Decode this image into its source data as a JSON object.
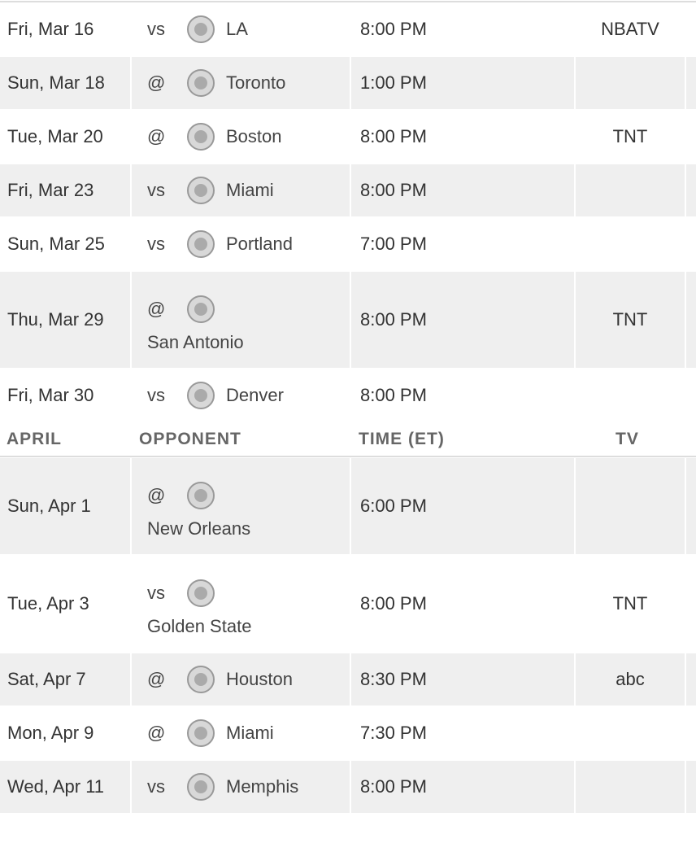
{
  "sections": [
    {
      "games": [
        {
          "date": "Fri, Mar 16",
          "site": "vs",
          "opponent": "LA",
          "time": "8:00 PM",
          "tv": "NBATV"
        },
        {
          "date": "Sun, Mar 18",
          "site": "@",
          "opponent": "Toronto",
          "time": "1:00 PM"
        },
        {
          "date": "Tue, Mar 20",
          "site": "@",
          "opponent": "Boston",
          "time": "8:00 PM",
          "tv": "TNT"
        },
        {
          "date": "Fri, Mar 23",
          "site": "vs",
          "opponent": "Miami",
          "time": "8:00 PM"
        },
        {
          "date": "Sun, Mar 25",
          "site": "vs",
          "opponent": "Portland",
          "time": "7:00 PM"
        },
        {
          "date": "Thu, Mar 29",
          "site": "@",
          "opponent": "San Antonio",
          "time": "8:00 PM",
          "tv": "TNT"
        },
        {
          "date": "Fri, Mar 30",
          "site": "vs",
          "opponent": "Denver",
          "time": "8:00 PM"
        }
      ]
    },
    {
      "header": {
        "month": "APRIL",
        "opponent": "OPPONENT",
        "time": "TIME (ET)",
        "tv": "TV"
      },
      "games": [
        {
          "date": "Sun, Apr 1",
          "site": "@",
          "opponent": "New Orleans",
          "time": "6:00 PM"
        },
        {
          "date": "Tue, Apr 3",
          "site": "vs",
          "opponent": "Golden State",
          "time": "8:00 PM",
          "tv": "TNT"
        },
        {
          "date": "Sat, Apr 7",
          "site": "@",
          "opponent": "Houston",
          "time": "8:30 PM",
          "tv": "abc"
        },
        {
          "date": "Mon, Apr 9",
          "site": "@",
          "opponent": "Miami",
          "time": "7:30 PM"
        },
        {
          "date": "Wed, Apr 11",
          "site": "vs",
          "opponent": "Memphis",
          "time": "8:00 PM"
        }
      ]
    }
  ]
}
